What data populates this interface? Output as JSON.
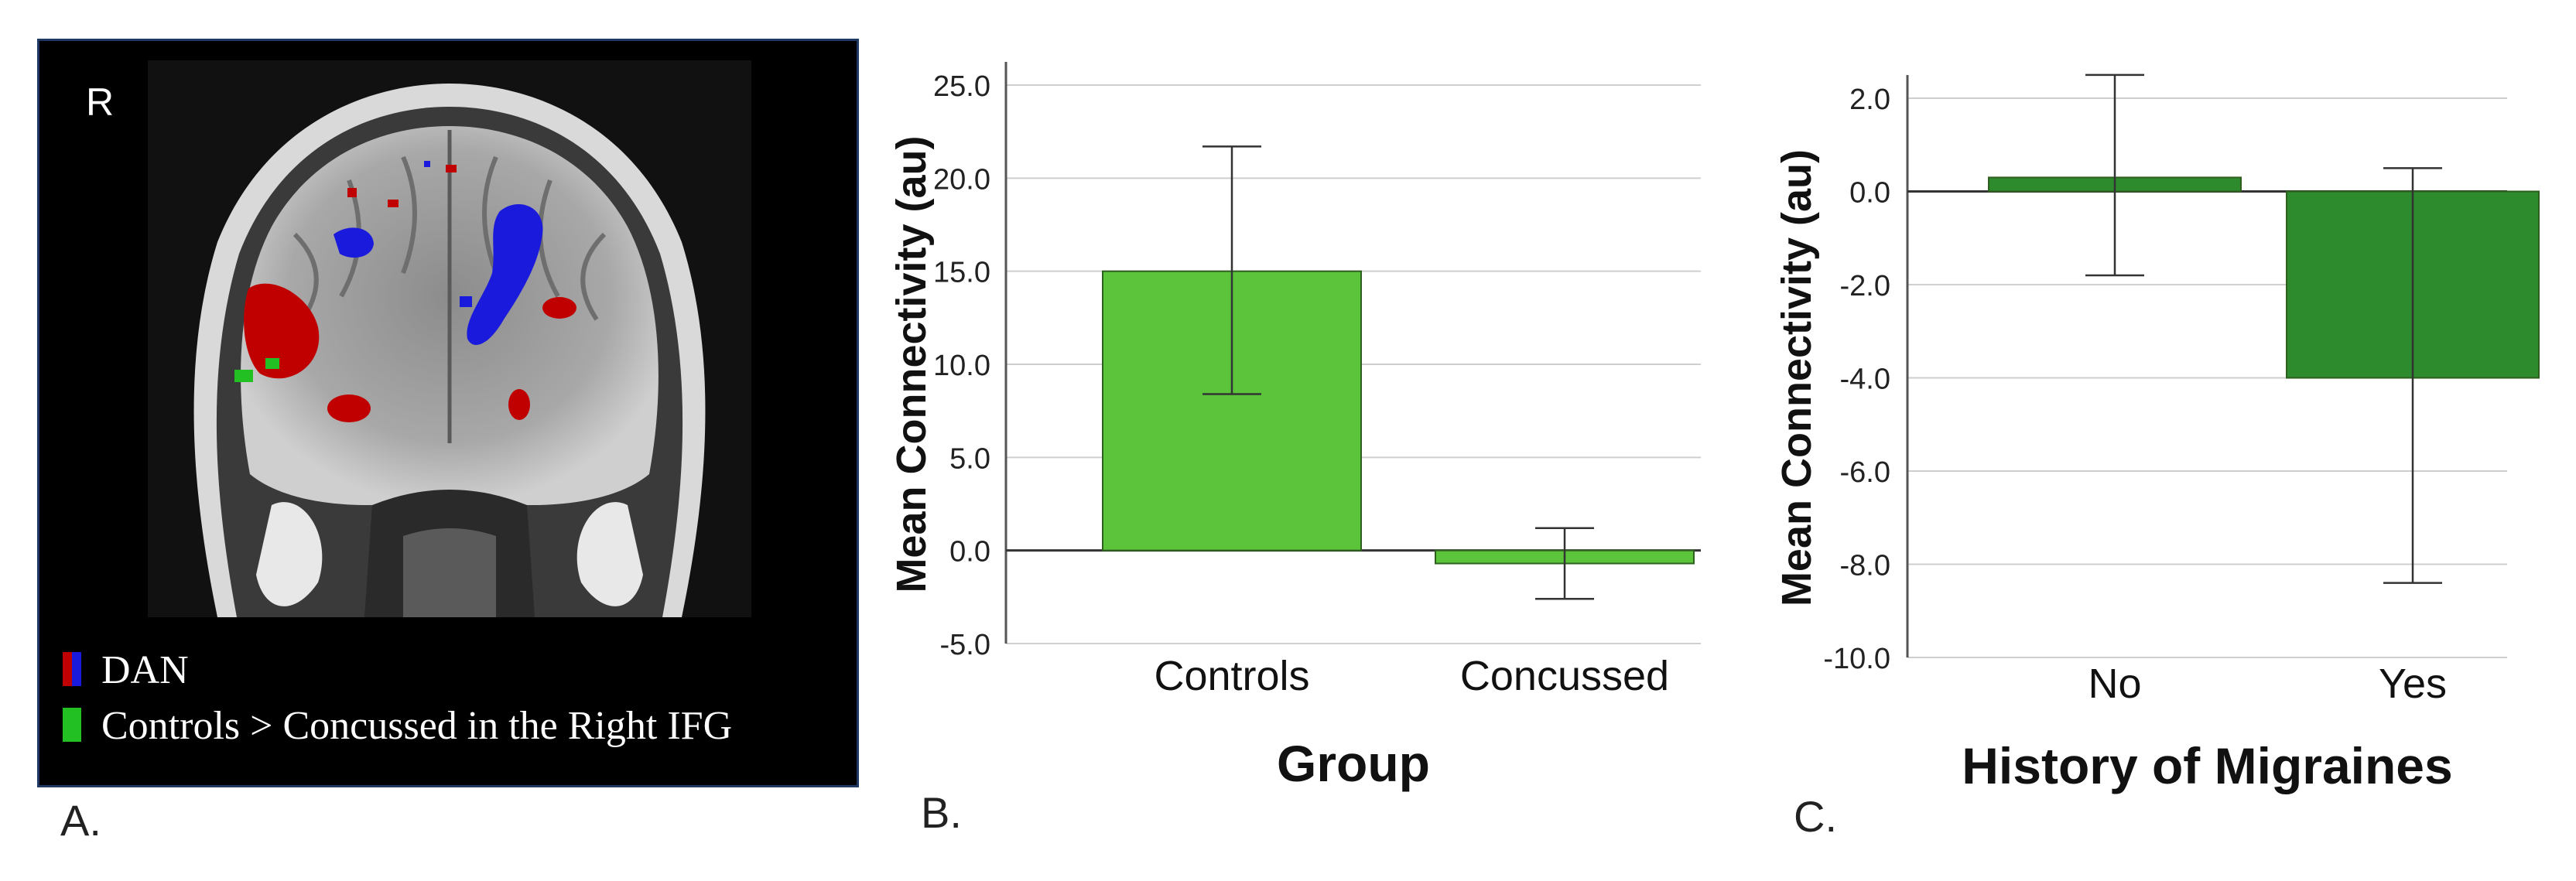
{
  "panel_a": {
    "label": "A.",
    "orientation_marker": "R",
    "legend": [
      {
        "text": "DAN",
        "swatch_colors": [
          "#c00000",
          "#1a1adc"
        ]
      },
      {
        "text": "Controls > Concussed in the Right IFG",
        "swatch_colors": [
          "#22c022"
        ]
      }
    ]
  },
  "chart_data": [
    {
      "type": "bar",
      "panel_label": "B.",
      "title": "",
      "xlabel": "Group",
      "ylabel": "Mean Connectivity (au)",
      "categories": [
        "Controls",
        "Concussed"
      ],
      "values": [
        15.0,
        -0.7
      ],
      "error_low": [
        8.4,
        -2.6
      ],
      "error_high": [
        21.7,
        1.2
      ],
      "colors": [
        "#5bc43a",
        "#5bc43a"
      ],
      "ylim": [
        -5.0,
        25.0
      ],
      "yticks": [
        -5.0,
        0.0,
        5.0,
        10.0,
        15.0,
        20.0,
        25.0
      ],
      "ytick_labels": [
        "-5.0",
        "0.0",
        "5.0",
        "10.0",
        "15.0",
        "20.0",
        "25.0"
      ],
      "grid": true
    },
    {
      "type": "bar",
      "panel_label": "C.",
      "title": "",
      "xlabel": "History of Migraines",
      "ylabel": "Mean Connectivity (au)",
      "categories": [
        "No",
        "Yes"
      ],
      "values": [
        0.3,
        -4.0
      ],
      "error_low": [
        -1.8,
        -8.4
      ],
      "error_high": [
        2.5,
        0.5
      ],
      "colors": [
        "#2d8a2d",
        "#2d8a2d"
      ],
      "ylim": [
        -10.0,
        2.0
      ],
      "yticks": [
        -10.0,
        -8.0,
        -6.0,
        -4.0,
        -2.0,
        0.0,
        2.0
      ],
      "ytick_labels": [
        "-10.0",
        "-8.0",
        "-6.0",
        "-4.0",
        "-2.0",
        "0.0",
        "2.0"
      ],
      "grid": true
    }
  ]
}
